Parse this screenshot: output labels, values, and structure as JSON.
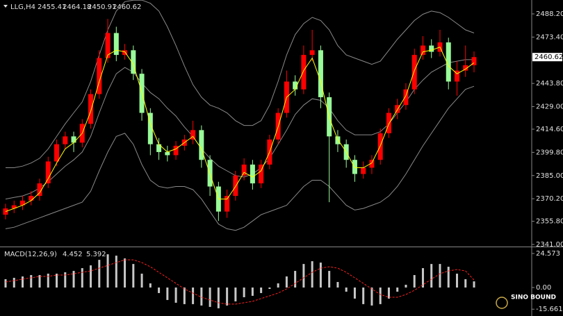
{
  "chart_data": [
    {
      "type": "candlestick",
      "title": "LLG,H4",
      "open": [
        2360,
        2364,
        2366,
        2369,
        2372,
        2380,
        2394,
        2405,
        2410,
        2406,
        2418,
        2437,
        2460,
        2476,
        2462,
        2465,
        2450,
        2425,
        2405,
        2400,
        2398,
        2404,
        2408,
        2414,
        2395,
        2378,
        2362,
        2372,
        2385,
        2392,
        2380,
        2392,
        2408,
        2425,
        2445,
        2440,
        2462,
        2465,
        2435,
        2410,
        2405,
        2395,
        2386,
        2390,
        2395,
        2412,
        2425,
        2430,
        2440,
        2462,
        2468,
        2464,
        2470,
        2445,
        2452,
        2455.41
      ],
      "high": [
        2367,
        2369,
        2372,
        2375,
        2383,
        2397,
        2408,
        2413,
        2413,
        2421,
        2440,
        2465,
        2485,
        2480,
        2469,
        2468,
        2453,
        2428,
        2409,
        2404,
        2407,
        2411,
        2420,
        2417,
        2398,
        2381,
        2376,
        2388,
        2396,
        2395,
        2395,
        2411,
        2428,
        2452,
        2449,
        2468,
        2478,
        2468,
        2438,
        2414,
        2408,
        2398,
        2394,
        2398,
        2415,
        2428,
        2434,
        2444,
        2466,
        2474,
        2472,
        2478,
        2473,
        2458,
        2468,
        2464.18
      ],
      "low": [
        2357,
        2361,
        2363,
        2366,
        2369,
        2377,
        2391,
        2402,
        2400,
        2403,
        2415,
        2434,
        2457,
        2458,
        2459,
        2446,
        2420,
        2398,
        2395,
        2394,
        2395,
        2401,
        2405,
        2390,
        2372,
        2356,
        2358,
        2369,
        2382,
        2376,
        2377,
        2389,
        2405,
        2422,
        2436,
        2437,
        2458,
        2428,
        2368,
        2400,
        2390,
        2381,
        2383,
        2386,
        2392,
        2409,
        2421,
        2427,
        2437,
        2459,
        2460,
        2461,
        2440,
        2436,
        2448,
        2450.91
      ],
      "close": [
        2364,
        2366,
        2369,
        2372,
        2380,
        2394,
        2405,
        2410,
        2406,
        2418,
        2437,
        2460,
        2476,
        2462,
        2465,
        2450,
        2425,
        2405,
        2400,
        2398,
        2404,
        2408,
        2414,
        2395,
        2378,
        2362,
        2372,
        2385,
        2392,
        2380,
        2392,
        2408,
        2425,
        2445,
        2440,
        2462,
        2465,
        2435,
        2410,
        2405,
        2395,
        2386,
        2390,
        2395,
        2412,
        2425,
        2430,
        2440,
        2462,
        2468,
        2464,
        2470,
        2445,
        2452,
        2455.41,
        2460.62
      ],
      "upper_band": [
        2390,
        2390,
        2391,
        2393,
        2396,
        2402,
        2410,
        2418,
        2425,
        2432,
        2445,
        2462,
        2478,
        2490,
        2496,
        2497,
        2497,
        2495,
        2490,
        2480,
        2468,
        2455,
        2443,
        2435,
        2430,
        2428,
        2425,
        2420,
        2417,
        2417,
        2420,
        2430,
        2445,
        2462,
        2475,
        2482,
        2486,
        2484,
        2478,
        2468,
        2462,
        2460,
        2458,
        2456,
        2458,
        2465,
        2472,
        2478,
        2484,
        2488,
        2490,
        2489,
        2486,
        2482,
        2478,
        2476
      ],
      "middle_band": [
        2370,
        2371,
        2372,
        2374,
        2377,
        2381,
        2386,
        2391,
        2395,
        2400,
        2410,
        2425,
        2439,
        2450,
        2454,
        2451,
        2444,
        2438,
        2434,
        2428,
        2423,
        2416,
        2410,
        2402,
        2396,
        2391,
        2388,
        2385,
        2384,
        2386,
        2390,
        2396,
        2405,
        2414,
        2424,
        2430,
        2434,
        2433,
        2428,
        2420,
        2414,
        2411,
        2411,
        2411,
        2413,
        2418,
        2425,
        2432,
        2440,
        2446,
        2451,
        2454,
        2457,
        2458,
        2459,
        2459
      ],
      "lower_band": [
        2351,
        2352,
        2354,
        2356,
        2358,
        2360,
        2362,
        2364,
        2366,
        2368,
        2375,
        2388,
        2400,
        2410,
        2412,
        2405,
        2392,
        2382,
        2378,
        2377,
        2378,
        2378,
        2376,
        2370,
        2362,
        2354,
        2351,
        2350,
        2352,
        2356,
        2360,
        2362,
        2364,
        2366,
        2372,
        2378,
        2382,
        2382,
        2378,
        2372,
        2366,
        2363,
        2364,
        2366,
        2368,
        2372,
        2378,
        2386,
        2395,
        2404,
        2412,
        2420,
        2428,
        2434,
        2440,
        2442
      ],
      "ma": [
        2362,
        2364,
        2366,
        2369,
        2374,
        2383,
        2393,
        2402,
        2406,
        2412,
        2426,
        2445,
        2462,
        2465,
        2464,
        2456,
        2438,
        2418,
        2405,
        2400,
        2402,
        2406,
        2410,
        2402,
        2386,
        2370,
        2370,
        2378,
        2387,
        2384,
        2388,
        2400,
        2416,
        2435,
        2440,
        2452,
        2460,
        2445,
        2422,
        2408,
        2400,
        2390,
        2390,
        2393,
        2404,
        2418,
        2427,
        2436,
        2452,
        2464,
        2465,
        2467,
        2455,
        2450,
        2453,
        2457
      ],
      "up_color": "#ff0000",
      "down_color": "#98fb98",
      "band_color": "#8a8a8a",
      "ma_color": "#ffff00",
      "ylim": [
        2340.11,
        2495.74
      ],
      "yticks": [
        {
          "value": 2488.2,
          "label": "2488.20"
        },
        {
          "value": 2473.4,
          "label": "2473.40"
        },
        {
          "value": 2443.8,
          "label": "2443.80"
        },
        {
          "value": 2429,
          "label": "2429.00"
        },
        {
          "value": 2414.6,
          "label": "2414.60"
        },
        {
          "value": 2399.8,
          "label": "2399.80"
        },
        {
          "value": 2385,
          "label": "2385.00"
        },
        {
          "value": 2370.2,
          "label": "2370.20"
        },
        {
          "value": 2355.8,
          "label": "2355.80"
        },
        {
          "value": 2341,
          "label": "2341.00"
        }
      ]
    },
    {
      "type": "macd",
      "title": "MACD(12,26,9)",
      "histogram": [
        6,
        7,
        8,
        9,
        9,
        10,
        10,
        11,
        12,
        14,
        16,
        20,
        24,
        23,
        21,
        17,
        10,
        3,
        -4,
        -9,
        -11,
        -12,
        -12,
        -13,
        -14,
        -15,
        -13,
        -10,
        -7,
        -6,
        -4,
        -1,
        3,
        8,
        12,
        17,
        19,
        18,
        12,
        4,
        -3,
        -8,
        -12,
        -13,
        -12,
        -8,
        -3,
        2,
        9,
        14,
        17,
        17,
        15,
        10,
        6,
        4.452
      ],
      "signal": [
        4,
        5,
        6,
        7,
        8,
        8,
        9,
        9,
        10,
        11,
        12,
        14,
        16,
        18,
        20,
        20,
        18,
        15,
        11,
        7,
        3,
        -1,
        -4,
        -7,
        -9,
        -11,
        -12,
        -12,
        -11,
        -10,
        -8,
        -6,
        -4,
        -1,
        3,
        7,
        11,
        14,
        15,
        14,
        11,
        7,
        3,
        -1,
        -5,
        -7,
        -7,
        -5,
        -2,
        2,
        6,
        10,
        12,
        13,
        12,
        5.392
      ],
      "histogram_color": "#c8c8c8",
      "signal_color": "#ff2020",
      "ylim": [
        -19.56,
        28.58
      ],
      "yticks": [
        24.573,
        {
          "value": 0,
          "label": "0.00"
        },
        -15.661
      ]
    }
  ],
  "watermark": "SINO BOUND"
}
